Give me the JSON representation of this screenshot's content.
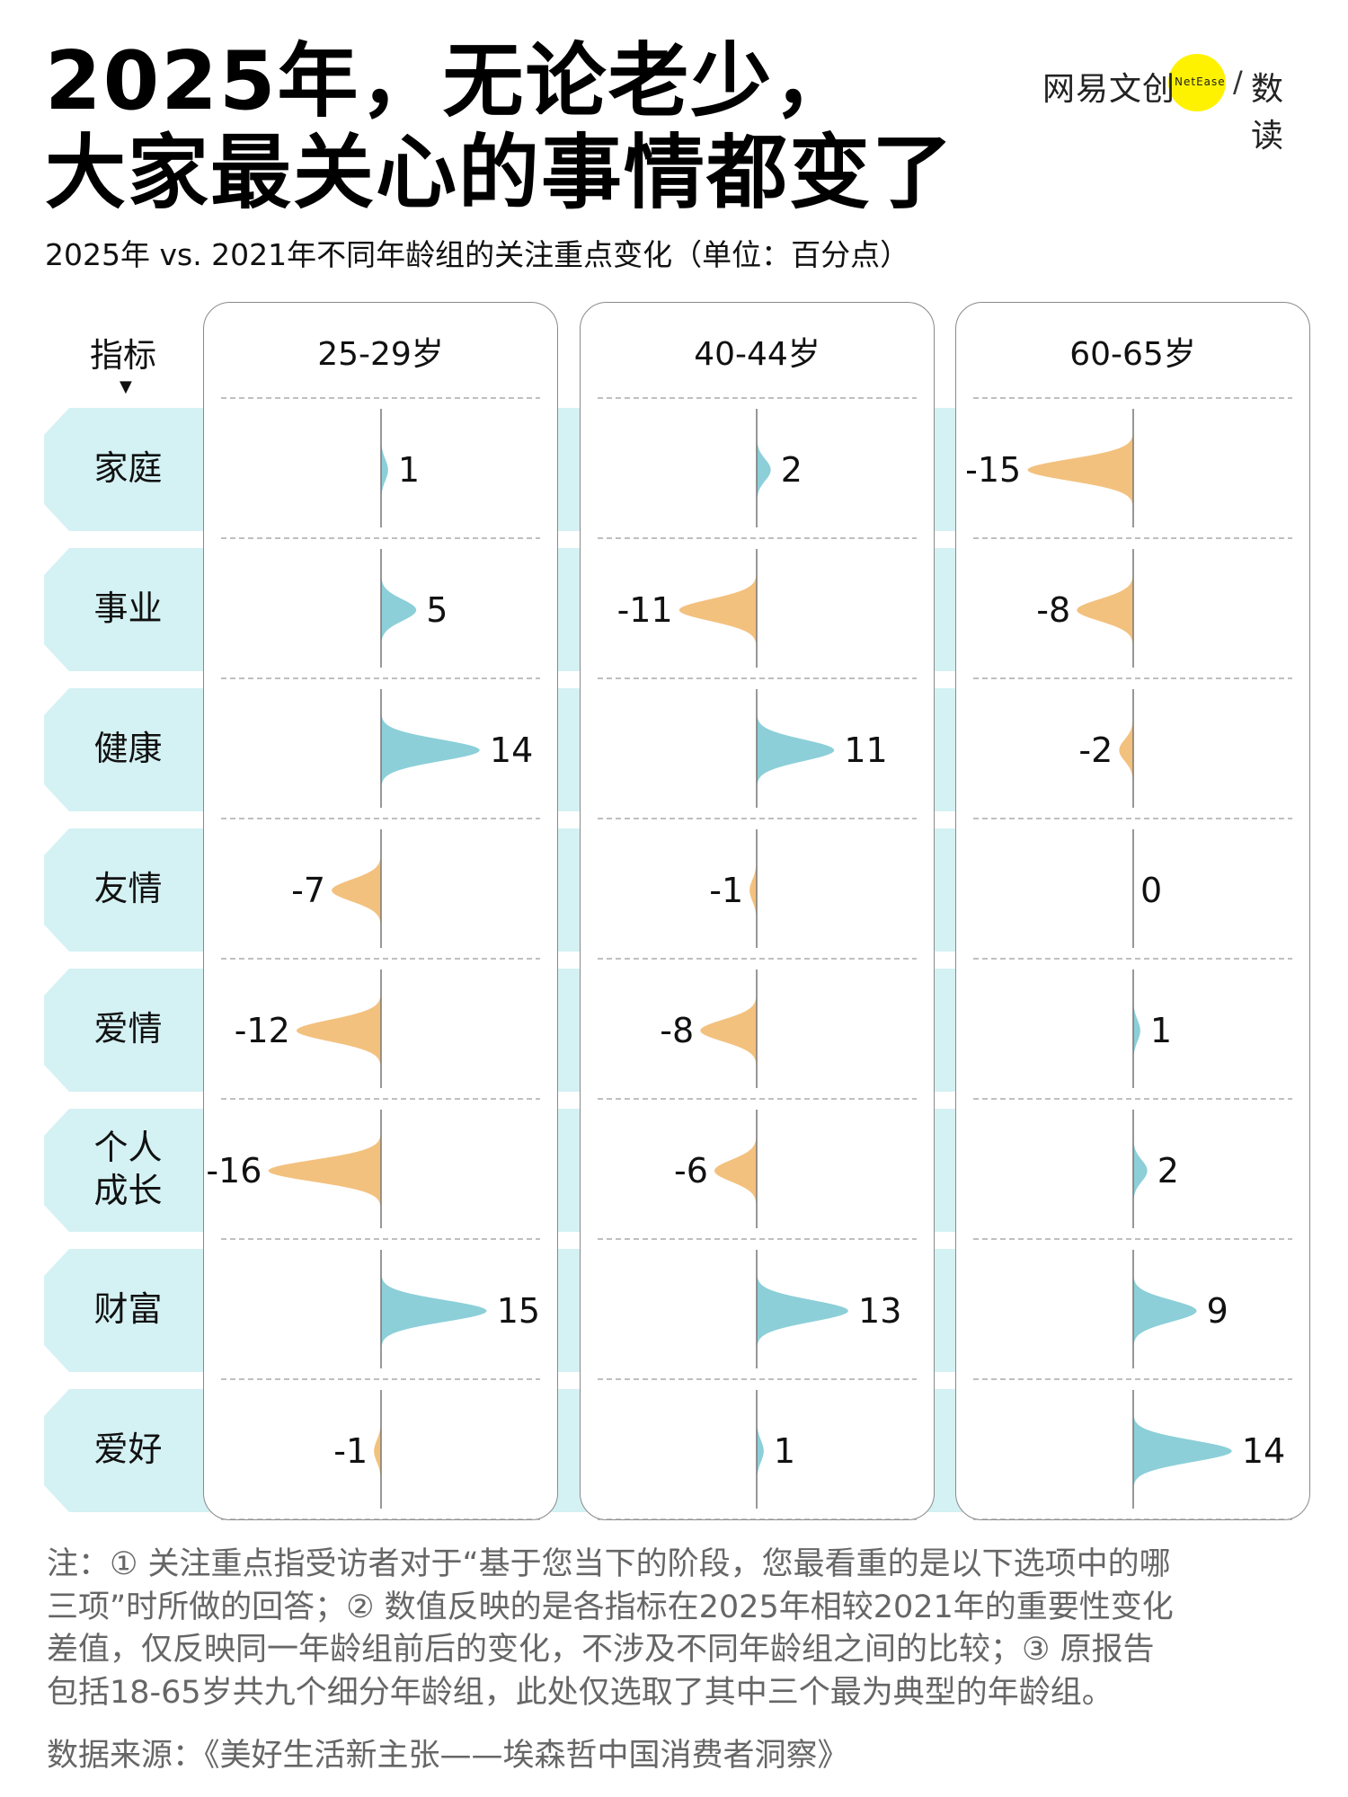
{
  "title": {
    "line1": "2025年，无论老少，",
    "line2": "大家最关心的事情都变了"
  },
  "subtitle": "2025年 vs. 2021年不同年龄组的关注重点变化（单位：百分点）",
  "logo": {
    "brand": "网易文创",
    "brand_en": "NetEase",
    "slash": "/",
    "column": "数读"
  },
  "colors": {
    "positive": "#8ccfd8",
    "negative": "#f3c17e",
    "band": "#d4f1f3"
  },
  "chart_data": {
    "type": "ridge-bar",
    "title": "2025年 vs. 2021年不同年龄组的关注重点变化（单位：百分点）",
    "row_header": "指标",
    "row_header_marker": "▼",
    "categories": [
      "家庭",
      "事业",
      "健康",
      "友情",
      "爱情",
      "个人成长",
      "财富",
      "爱好"
    ],
    "category_lines": [
      [
        "家庭"
      ],
      [
        "事业"
      ],
      [
        "健康"
      ],
      [
        "友情"
      ],
      [
        "爱情"
      ],
      [
        "个人",
        "成长"
      ],
      [
        "财富"
      ],
      [
        "爱好"
      ]
    ],
    "series": [
      {
        "name": "25-29岁",
        "values": [
          1,
          5,
          14,
          -7,
          -12,
          -16,
          15,
          -1
        ]
      },
      {
        "name": "40-44岁",
        "values": [
          2,
          -11,
          11,
          -1,
          -8,
          -6,
          13,
          1
        ]
      },
      {
        "name": "60-65岁",
        "values": [
          -15,
          -8,
          -2,
          0,
          1,
          2,
          9,
          14
        ]
      }
    ],
    "unit": "百分点",
    "xlim": [
      -16,
      16
    ]
  },
  "notes": [
    "注：① 关注重点指受访者对于“基于您当下的阶段，您最看重的是以下选项中的哪",
    "三项”时所做的回答；② 数值反映的是各指标在2025年相较2021年的重要性变化",
    "差值，仅反映同一年龄组前后的变化，不涉及不同年龄组之间的比较；③ 原报告",
    "包括18-65岁共九个细分年龄组，此处仅选取了其中三个最为典型的年龄组。"
  ],
  "source": "数据来源：《美好生活新主张——埃森哲中国消费者洞察》"
}
